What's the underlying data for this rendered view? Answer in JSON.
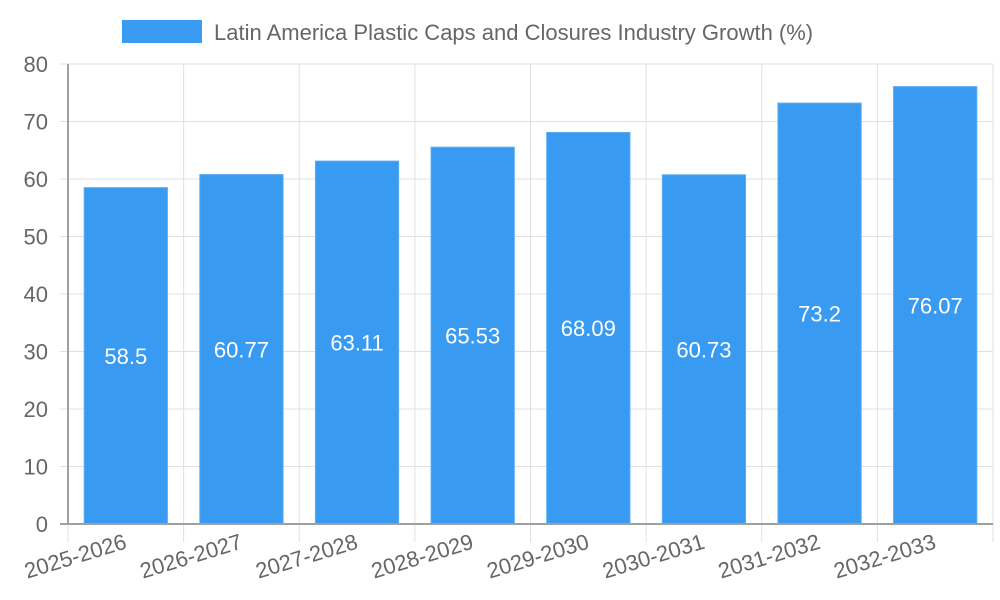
{
  "chart_data": {
    "type": "bar",
    "title": "",
    "legend": {
      "position": "top-center",
      "entries": [
        "Latin America Plastic Caps and Closures Industry Growth (%)"
      ]
    },
    "categories": [
      "2025-2026",
      "2026-2027",
      "2027-2028",
      "2028-2029",
      "2029-2030",
      "2030-2031",
      "2031-2032",
      "2032-2033"
    ],
    "series": [
      {
        "name": "Latin America Plastic Caps and Closures Industry Growth (%)",
        "values": [
          58.5,
          60.77,
          63.11,
          65.53,
          68.09,
          60.73,
          73.2,
          76.07
        ],
        "labels": [
          "58.5",
          "60.77",
          "63.11",
          "65.53",
          "68.09",
          "60.73",
          "73.2",
          "76.07"
        ],
        "color": "#389af0"
      }
    ],
    "xlabel": "",
    "ylabel": "",
    "ylim": [
      0,
      80
    ],
    "yticks": [
      "0",
      "10",
      "20",
      "30",
      "40",
      "50",
      "60",
      "70",
      "80"
    ],
    "grid": true,
    "colors": {
      "bar": "#389af0",
      "bar_border": "#5aadf3",
      "grid": "#e0e0e0",
      "axis": "#a0a0a0",
      "text": "#666666",
      "label": "#ffffff"
    }
  }
}
